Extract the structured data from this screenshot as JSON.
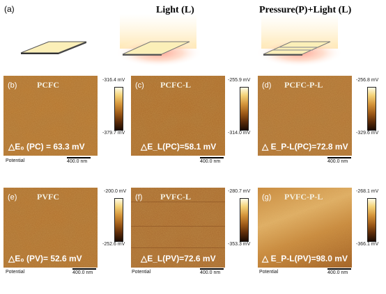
{
  "top": {
    "label_a": "(a)",
    "header_light": "Light (L)",
    "header_pressure_light": "Pressure(P)+Light (L)"
  },
  "panels": [
    {
      "letter": "(b)",
      "title": "PCFC",
      "cb_max": "-316.4 mV",
      "cb_min": "-379.7 mV",
      "delta_text": "△E₀ (PC) = 63.3 mV"
    },
    {
      "letter": "(c)",
      "title": "PCFC-L",
      "cb_max": "-255.9 mV",
      "cb_min": "-314.0 mV",
      "delta_text": "△E_L(PC)=58.1 mV"
    },
    {
      "letter": "(d)",
      "title": "PCFC-P-L",
      "cb_max": "-256.8 mV",
      "cb_min": "-329.6 mV",
      "delta_text": "△ E_P-L(PC)=72.8 mV"
    },
    {
      "letter": "(e)",
      "title": "PVFC",
      "cb_max": "-200.0 mV",
      "cb_min": "-252.6 mV",
      "delta_text": "△E₀ (PV)= 52.6 mV"
    },
    {
      "letter": "(f)",
      "title": "PVFC-L",
      "cb_max": "-280.7 mV",
      "cb_min": "-353.3 mV",
      "delta_text": "△E_L(PV)=72.6 mV"
    },
    {
      "letter": "(g)",
      "title": "PVFC-P-L",
      "cb_max": "-268.1 mV",
      "cb_min": "-366.1 mV",
      "delta_text": "△ E_P-L(PV)=98.0 mV"
    }
  ],
  "footer": {
    "potential_label": "Potential",
    "scale_label": "400.0 nm"
  },
  "colors": {
    "film": "#fbefb8",
    "afm_dark": "#7a3f0e",
    "afm_mid": "#b9772e",
    "glow": "#f7a59a"
  }
}
